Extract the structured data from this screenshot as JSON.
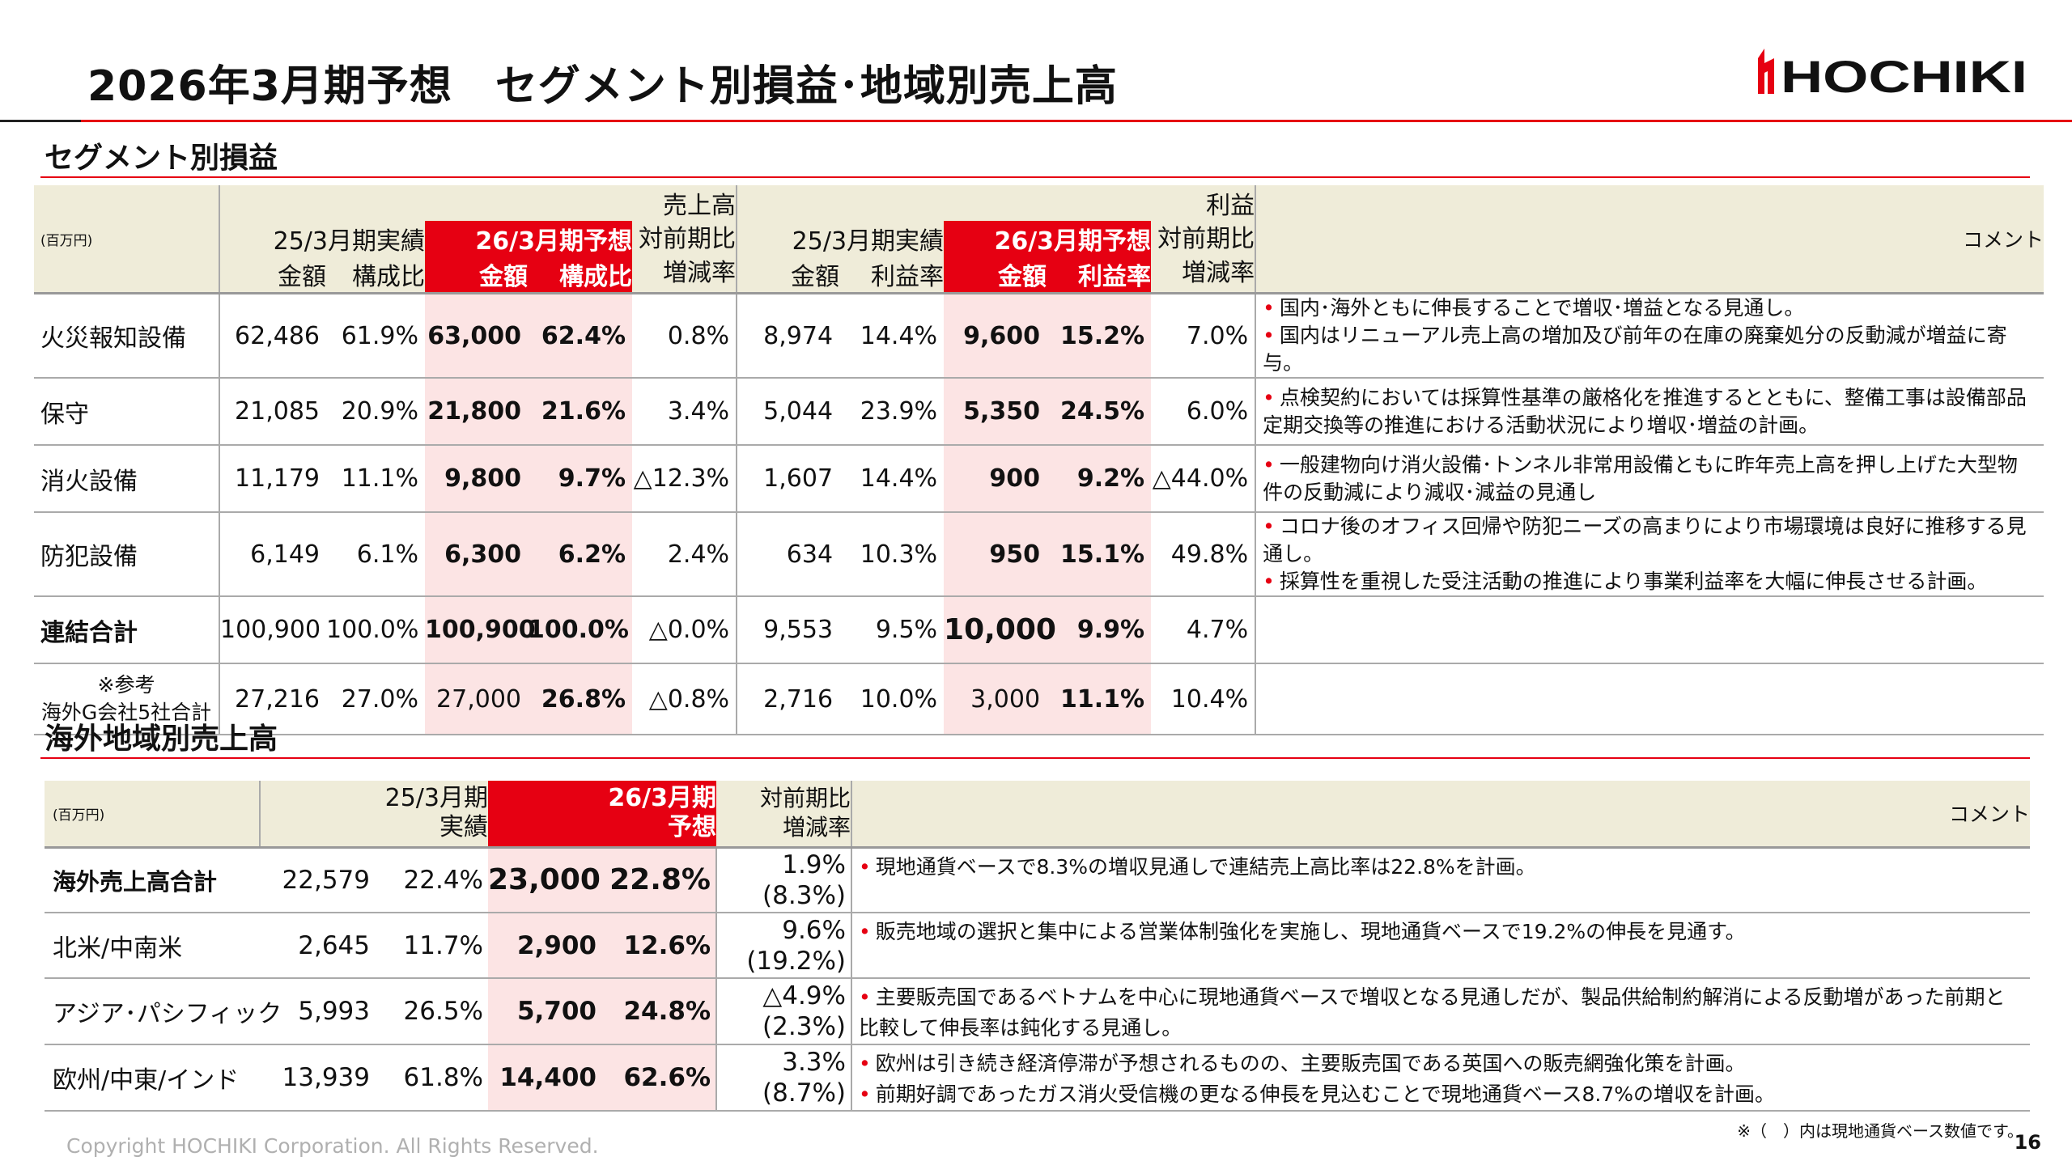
{
  "header": {
    "title": "2026年3月期予想　セグメント別損益･地域別売上高",
    "logo": "HOCHIKI"
  },
  "segment": {
    "heading": "セグメント別損益",
    "unit": "(百万円)",
    "group_sales": "売上高",
    "group_profit": "利益",
    "prev": "25/3月期実績",
    "fcst": "26/3月期予想",
    "yoy": "対前期比",
    "amount": "金額",
    "share": "構成比",
    "rate": "利益率",
    "change": "増減率",
    "comment": "コメント",
    "rows": [
      {
        "label": "火災報知設備",
        "v": [
          "62,486",
          "61.9%",
          "63,000",
          "62.4%",
          "0.8%",
          "8,974",
          "14.4%",
          "9,600",
          "15.2%",
          "7.0%"
        ],
        "comments": [
          "国内･海外ともに伸長することで増収･増益となる見通し。",
          "国内はリニューアル売上高の増加及び前年の在庫の廃棄処分の反動減が増益に寄与。"
        ]
      },
      {
        "label": "保守",
        "v": [
          "21,085",
          "20.9%",
          "21,800",
          "21.6%",
          "3.4%",
          "5,044",
          "23.9%",
          "5,350",
          "24.5%",
          "6.0%"
        ],
        "comments": [
          "点検契約においては採算性基準の厳格化を推進するとともに、整備工事は設備部品定期交換等の推進における活動状況により増収･増益の計画。"
        ]
      },
      {
        "label": "消火設備",
        "v": [
          "11,179",
          "11.1%",
          "9,800",
          "9.7%",
          "△12.3%",
          "1,607",
          "14.4%",
          "900",
          "9.2%",
          "△44.0%"
        ],
        "comments": [
          "一般建物向け消火設備･トンネル非常用設備ともに昨年売上高を押し上げた大型物件の反動減により減収･減益の見通し"
        ]
      },
      {
        "label": "防犯設備",
        "v": [
          "6,149",
          "6.1%",
          "6,300",
          "6.2%",
          "2.4%",
          "634",
          "10.3%",
          "950",
          "15.1%",
          "49.8%"
        ],
        "comments": [
          "コロナ後のオフィス回帰や防犯ニーズの高まりにより市場環境は良好に推移する見通し。",
          "採算性を重視した受注活動の推進により事業利益率を大幅に伸長させる計画。"
        ]
      },
      {
        "label": "連結合計",
        "v": [
          "100,900",
          "100.0%",
          "100,900",
          "100.0%",
          "△0.0%",
          "9,553",
          "9.5%",
          "10,000",
          "9.9%",
          "4.7%"
        ],
        "comments": []
      },
      {
        "label": "※参考",
        "label2": "海外G会社5社合計",
        "v": [
          "27,216",
          "27.0%",
          "27,000",
          "26.8%",
          "△0.8%",
          "2,716",
          "10.0%",
          "3,000",
          "11.1%",
          "10.4%"
        ],
        "comments": []
      }
    ]
  },
  "region": {
    "heading": "海外地域別売上高",
    "unit": "(百万円)",
    "prev1": "25/3月期",
    "prev2": "実績",
    "fcst1": "26/3月期",
    "fcst2": "予想",
    "yoy1": "対前期比",
    "yoy2": "増減率",
    "comment": "コメント",
    "rows": [
      {
        "label": "海外売上高合計",
        "v": [
          "22,579",
          "22.4%",
          "23,000",
          "22.8%"
        ],
        "chg": "1.9%",
        "local": "(8.3%)",
        "comments": [
          "現地通貨ベースで8.3%の増収見通しで連結売上高比率は22.8%を計画。"
        ]
      },
      {
        "label": "北米/中南米",
        "v": [
          "2,645",
          "11.7%",
          "2,900",
          "12.6%"
        ],
        "chg": "9.6%",
        "local": "(19.2%)",
        "comments": [
          "販売地域の選択と集中による営業体制強化を実施し、現地通貨ベースで19.2%の伸長を見通す。"
        ]
      },
      {
        "label": "アジア･パシフィック",
        "v": [
          "5,993",
          "26.5%",
          "5,700",
          "24.8%"
        ],
        "chg": "△4.9%",
        "local": "(2.3%)",
        "comments": [
          "主要販売国であるベトナムを中心に現地通貨ベースで増収となる見通しだが、製品供給制約解消による反動増があった前期と比較して伸長率は鈍化する見通し。"
        ]
      },
      {
        "label": "欧州/中東/インド",
        "v": [
          "13,939",
          "61.8%",
          "14,400",
          "62.6%"
        ],
        "chg": "3.3%",
        "local": "(8.7%)",
        "comments": [
          "欧州は引き続き経済停滞が予想されるものの、主要販売国である英国への販売網強化策を計画。",
          "前期好調であったガス消火受信機の更なる伸長を見込むことで現地通貨ベース8.7%の増収を計画。"
        ]
      }
    ],
    "footnote": "※（　）内は現地通貨ベース数値です。"
  },
  "footer": {
    "copyright": "Copyright HOCHIKI Corporation. All Rights Reserved.",
    "page": "16"
  },
  "colors": {
    "accent": "#e60012",
    "header_bg": "#efecd9",
    "forecast_bg": "#fce4e4"
  }
}
